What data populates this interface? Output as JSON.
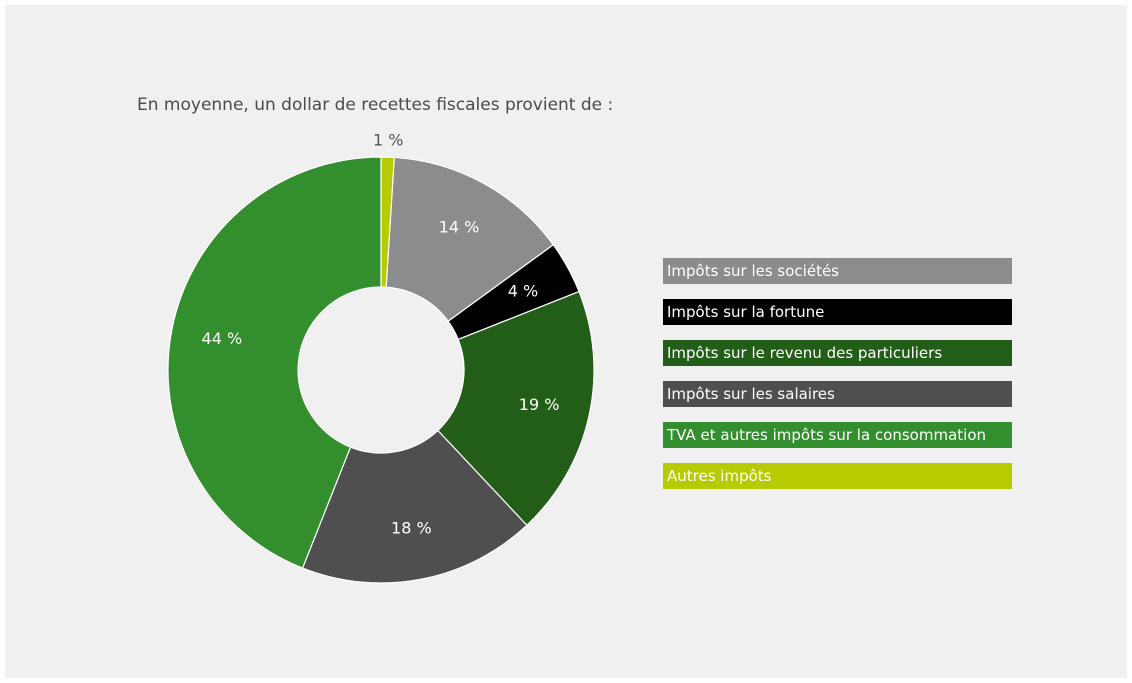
{
  "chart_data": {
    "type": "pie",
    "subtitle": "En moyenne, un dollar de recettes fiscales provient de :",
    "unit": "%",
    "donut": true,
    "legend_position": "right",
    "slices": [
      {
        "name": "Autres impôts",
        "value": 1,
        "label": "1 %",
        "color": "#b7cc00",
        "label_color": "#555555"
      },
      {
        "name": "Impôts sur les sociétés",
        "value": 14,
        "label": "14 %",
        "color": "#8c8c8c",
        "label_color": "#ffffff"
      },
      {
        "name": "Impôts sur la fortune",
        "value": 4,
        "label": "4 %",
        "color": "#000000",
        "label_color": "#ffffff"
      },
      {
        "name": "Impôts sur le revenu des particuliers",
        "value": 19,
        "label": "19 %",
        "color": "#235e18",
        "label_color": "#ffffff"
      },
      {
        "name": "Impôts sur les salaires",
        "value": 18,
        "label": "18 %",
        "color": "#4f4f4f",
        "label_color": "#ffffff"
      },
      {
        "name": "TVA et autres impôts sur la consommation",
        "value": 44,
        "label": "44 %",
        "color": "#338f2e",
        "label_color": "#ffffff"
      }
    ],
    "legend": [
      {
        "label": "Impôts sur les sociétés",
        "color": "#8c8c8c"
      },
      {
        "label": "Impôts sur la fortune",
        "color": "#000000"
      },
      {
        "label": "Impôts sur le revenu des particuliers",
        "color": "#235e18"
      },
      {
        "label": "Impôts sur les salaires",
        "color": "#4f4f4f"
      },
      {
        "label": "TVA et autres impôts sur la consommation",
        "color": "#338f2e"
      },
      {
        "label": "Autres impôts",
        "color": "#b7cc00"
      }
    ]
  }
}
